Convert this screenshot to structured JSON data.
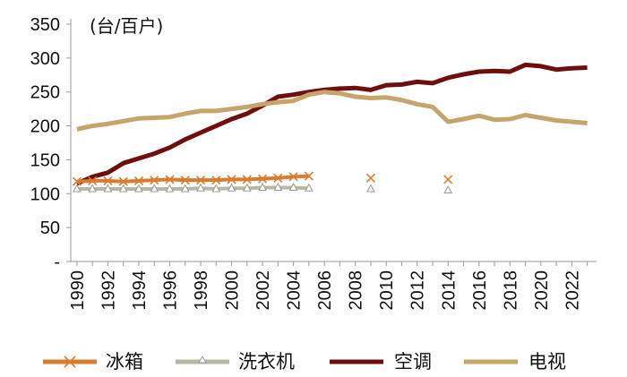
{
  "chart_data": {
    "type": "line",
    "unit_label": "(台/百户)",
    "x": [
      1990,
      1991,
      1992,
      1993,
      1994,
      1995,
      1996,
      1997,
      1998,
      1999,
      2000,
      2001,
      2002,
      2003,
      2004,
      2005,
      2006,
      2007,
      2008,
      2009,
      2010,
      2011,
      2012,
      2013,
      2014,
      2015,
      2016,
      2017,
      2018,
      2019,
      2020,
      2021,
      2022,
      2023
    ],
    "x_tick_labels": [
      "1990",
      "1992",
      "1994",
      "1996",
      "1998",
      "2000",
      "2002",
      "2004",
      "2006",
      "2008",
      "2010",
      "2012",
      "2014",
      "2016",
      "2018",
      "2020",
      "2022"
    ],
    "y_tick_labels": [
      "-",
      "50",
      "100",
      "150",
      "200",
      "250",
      "300",
      "350"
    ],
    "ylim": [
      0,
      350
    ],
    "series": [
      {
        "name": "冰箱",
        "color": "#DA7C30",
        "style": "line-x-markers",
        "values": [
          118,
          119,
          119,
          118,
          119,
          120,
          121,
          120,
          120,
          120,
          121,
          121,
          122,
          123,
          125,
          126,
          null,
          null,
          null,
          123,
          null,
          null,
          null,
          null,
          121,
          null,
          null,
          null,
          null,
          null,
          null,
          null,
          null,
          null
        ]
      },
      {
        "name": "洗衣机",
        "color": "#B5B9A4",
        "style": "line-triangle-markers",
        "values": [
          107,
          107,
          107,
          107,
          107,
          107,
          107,
          107,
          108,
          107,
          108,
          108,
          109,
          109,
          109,
          108,
          null,
          null,
          null,
          107,
          null,
          null,
          null,
          null,
          105,
          null,
          null,
          null,
          null,
          null,
          null,
          null,
          null,
          null
        ]
      },
      {
        "name": "空调",
        "color": "#6E0F0E",
        "style": "line",
        "values": [
          115,
          125,
          131,
          145,
          152,
          159,
          168,
          180,
          190,
          200,
          210,
          218,
          230,
          243,
          246,
          250,
          253,
          255,
          256,
          253,
          260,
          261,
          265,
          263,
          271,
          276,
          280,
          281,
          280,
          290,
          288,
          283,
          285,
          286
        ]
      },
      {
        "name": "电视",
        "color": "#C7A46A",
        "style": "line",
        "values": [
          195,
          200,
          203,
          207,
          211,
          212,
          213,
          218,
          222,
          222,
          225,
          228,
          232,
          235,
          237,
          246,
          250,
          248,
          243,
          241,
          242,
          238,
          232,
          228,
          206,
          210,
          215,
          209,
          210,
          216,
          212,
          208,
          206,
          204
        ]
      }
    ]
  }
}
